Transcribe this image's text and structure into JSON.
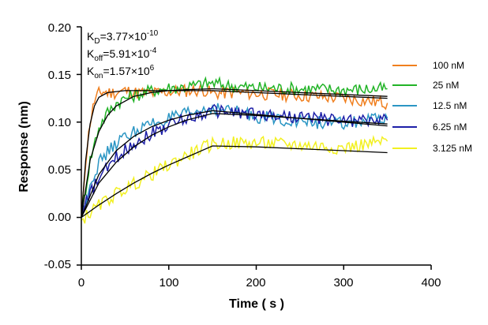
{
  "chart_data": {
    "type": "line",
    "title": "",
    "xlabel": "Time ( s )",
    "ylabel": "Response (nm)",
    "xlim": [
      0,
      400
    ],
    "ylim": [
      -0.05,
      0.2
    ],
    "xticks": [
      "0",
      "100",
      "200",
      "300",
      "400"
    ],
    "yticks": [
      "-0.05",
      "0.00",
      "0.05",
      "0.10",
      "0.15",
      "0.20"
    ],
    "grid": false,
    "legend_position": "right",
    "annotations": {
      "kd_main": "K",
      "kd_sub": "D",
      "kd_value": "=3.77×10",
      "kd_exp": "-10",
      "koff_main": "K",
      "koff_sub": "off",
      "koff_value": "=5.91×10",
      "koff_exp": "-4",
      "kon_main": "K",
      "kon_sub": "on",
      "kon_value": "=1.57×10",
      "kon_exp": "6"
    },
    "fit_color": "#000000",
    "series": [
      {
        "name": "100 nM",
        "color": "#f07f1e",
        "x": [
          0,
          5,
          10,
          15,
          20,
          25,
          30,
          40,
          50,
          60,
          80,
          100,
          120,
          140,
          150,
          170,
          200,
          250,
          300,
          350
        ],
        "y": [
          0.0,
          0.06,
          0.1,
          0.122,
          0.13,
          0.132,
          0.131,
          0.131,
          0.133,
          0.131,
          0.13,
          0.132,
          0.133,
          0.134,
          0.13,
          0.131,
          0.13,
          0.128,
          0.125,
          0.12
        ]
      },
      {
        "name": "25 nM",
        "color": "#22b427",
        "x": [
          0,
          5,
          10,
          20,
          30,
          40,
          50,
          60,
          80,
          100,
          120,
          140,
          150,
          170,
          200,
          250,
          300,
          350
        ],
        "y": [
          0.0,
          0.03,
          0.06,
          0.095,
          0.11,
          0.12,
          0.125,
          0.128,
          0.133,
          0.136,
          0.137,
          0.14,
          0.141,
          0.138,
          0.136,
          0.135,
          0.134,
          0.135
        ]
      },
      {
        "name": "12.5 nM",
        "color": "#2b96c4",
        "x": [
          0,
          10,
          20,
          30,
          40,
          60,
          80,
          100,
          120,
          150,
          170,
          200,
          250,
          300,
          350
        ],
        "y": [
          0.005,
          0.035,
          0.057,
          0.068,
          0.078,
          0.09,
          0.098,
          0.103,
          0.108,
          0.115,
          0.112,
          0.106,
          0.101,
          0.098,
          0.104
        ]
      },
      {
        "name": "6.25 nM",
        "color": "#1d1fa8",
        "x": [
          0,
          10,
          20,
          30,
          40,
          60,
          80,
          100,
          120,
          150,
          170,
          200,
          250,
          300,
          350
        ],
        "y": [
          0.002,
          0.025,
          0.04,
          0.052,
          0.063,
          0.078,
          0.088,
          0.097,
          0.104,
          0.112,
          0.111,
          0.108,
          0.105,
          0.102,
          0.102
        ]
      },
      {
        "name": "3.125 nM",
        "color": "#f2f021",
        "x": [
          0,
          10,
          20,
          40,
          60,
          80,
          100,
          120,
          150,
          170,
          200,
          250,
          300,
          350
        ],
        "y": [
          -0.003,
          0.005,
          0.012,
          0.025,
          0.035,
          0.045,
          0.055,
          0.065,
          0.077,
          0.078,
          0.078,
          0.076,
          0.073,
          0.08
        ]
      }
    ],
    "fits": [
      {
        "x": [
          0,
          5,
          10,
          15,
          20,
          30,
          50,
          80,
          120,
          150,
          200,
          250,
          300,
          350
        ],
        "y": [
          0.0,
          0.06,
          0.098,
          0.117,
          0.126,
          0.131,
          0.133,
          0.133,
          0.133,
          0.133,
          0.131,
          0.129,
          0.127,
          0.125
        ]
      },
      {
        "x": [
          0,
          10,
          20,
          30,
          40,
          60,
          80,
          100,
          120,
          150,
          200,
          250,
          300,
          350
        ],
        "y": [
          0.0,
          0.06,
          0.09,
          0.107,
          0.117,
          0.127,
          0.131,
          0.133,
          0.134,
          0.135,
          0.133,
          0.131,
          0.129,
          0.127
        ]
      },
      {
        "x": [
          0,
          20,
          40,
          60,
          80,
          100,
          120,
          150,
          200,
          250,
          300,
          350
        ],
        "y": [
          0.0,
          0.045,
          0.07,
          0.085,
          0.095,
          0.102,
          0.107,
          0.112,
          0.108,
          0.104,
          0.1,
          0.096
        ]
      },
      {
        "x": [
          0,
          20,
          40,
          60,
          80,
          100,
          120,
          150,
          200,
          250,
          300,
          350
        ],
        "y": [
          0.0,
          0.036,
          0.058,
          0.074,
          0.086,
          0.095,
          0.102,
          0.109,
          0.107,
          0.104,
          0.101,
          0.098
        ]
      },
      {
        "x": [
          0,
          20,
          40,
          60,
          80,
          100,
          120,
          150,
          200,
          250,
          300,
          350
        ],
        "y": [
          0.0,
          0.013,
          0.025,
          0.036,
          0.046,
          0.055,
          0.063,
          0.075,
          0.074,
          0.072,
          0.07,
          0.068
        ]
      }
    ]
  }
}
